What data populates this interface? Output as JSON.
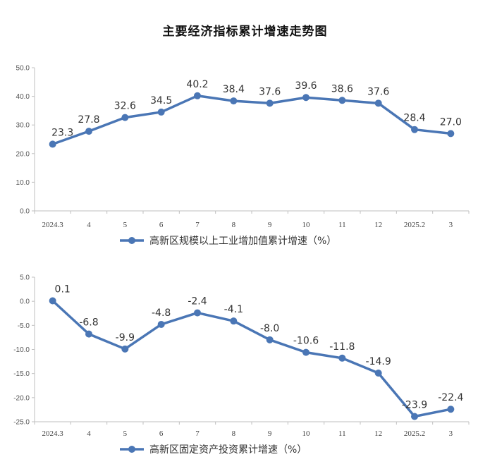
{
  "title": "主要经济指标累计增速走势图",
  "colors": {
    "line": "#4a76b5",
    "axis": "#bfbfbf",
    "text": "#333333"
  },
  "chart_data": [
    {
      "type": "line",
      "title": "",
      "categories": [
        "2024.3",
        "4",
        "5",
        "6",
        "7",
        "8",
        "9",
        "10",
        "11",
        "12",
        "2025.2",
        "3"
      ],
      "series": [
        {
          "name": "高新区规模以上工业增加值累计增速（%）",
          "values": [
            23.3,
            27.8,
            32.6,
            34.5,
            40.2,
            38.4,
            37.6,
            39.6,
            38.6,
            37.6,
            28.4,
            27.0
          ]
        }
      ],
      "data_labels": [
        "23.3",
        "27.8",
        "32.6",
        "34.5",
        "40.2",
        "38.4",
        "37.6",
        "39.6",
        "38.6",
        "37.6",
        "28.4",
        "27.0"
      ],
      "y_ticks": [
        "0.0",
        "10.0",
        "20.0",
        "30.0",
        "40.0",
        "50.0"
      ],
      "ylim": [
        0,
        50
      ],
      "legend": "bottom",
      "grid": false
    },
    {
      "type": "line",
      "title": "",
      "categories": [
        "2024.3",
        "4",
        "5",
        "6",
        "7",
        "8",
        "9",
        "10",
        "11",
        "12",
        "2025.2",
        "3"
      ],
      "series": [
        {
          "name": "高新区固定资产投资累计增速（%）",
          "values": [
            0.1,
            -6.8,
            -9.9,
            -4.8,
            -2.4,
            -4.1,
            -8.0,
            -10.6,
            -11.8,
            -14.9,
            -23.9,
            -22.4
          ]
        }
      ],
      "data_labels": [
        "0.1",
        "-6.8",
        "-9.9",
        "-4.8",
        "-2.4",
        "-4.1",
        "-8.0",
        "-10.6",
        "-11.8",
        "-14.9",
        "-23.9",
        "-22.4"
      ],
      "y_ticks": [
        "-25.0",
        "-20.0",
        "-15.0",
        "-10.0",
        "-5.0",
        "0.0",
        "5.0"
      ],
      "ylim": [
        -25,
        5
      ],
      "legend": "bottom",
      "grid": false
    }
  ]
}
